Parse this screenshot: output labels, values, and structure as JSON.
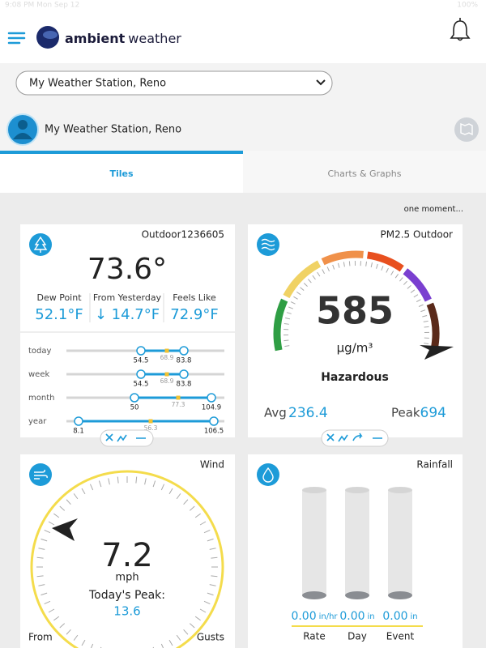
{
  "status_bar": {
    "time": "9:08 PM  Mon Sep 12",
    "battery": "100%"
  },
  "header": {
    "logo_bold": "ambient",
    "logo_light": "weather"
  },
  "station_select": "My Weather Station, Reno",
  "station_name": "My Weather Station, Reno",
  "tabs": [
    "Tiles",
    "Charts & Graphs"
  ],
  "status_message": "one moment...",
  "outdoor": {
    "title": "Outdoor1236605",
    "temperature": "73.6°",
    "stats": [
      {
        "label": "Dew Point",
        "value": "52.1°F"
      },
      {
        "label": "From Yesterday",
        "value": "↓ 14.7°F"
      },
      {
        "label": "Feels Like",
        "value": "72.9°F"
      }
    ],
    "ranges": [
      {
        "label": "today",
        "low": "54.5",
        "avg": "68.9",
        "high": "83.8"
      },
      {
        "label": "week",
        "low": "54.5",
        "avg": "68.9",
        "high": "83.8"
      },
      {
        "label": "month",
        "low": "50",
        "avg": "77.3",
        "high": "104.9"
      },
      {
        "label": "year",
        "low": "8.1",
        "avg": "56.3",
        "high": "106.5"
      }
    ]
  },
  "pm25": {
    "title": "PM2.5 Outdoor",
    "value": "585",
    "unit": "µg/m³",
    "level": "Hazardous",
    "avg_label": "Avg",
    "avg": "236.4",
    "peak_label": "Peak",
    "peak": "694"
  },
  "wind": {
    "title": "Wind",
    "speed": "7.2",
    "unit": "mph",
    "peak_label": "Today's Peak:",
    "peak": "13.6",
    "from_label": "From",
    "gusts_label": "Gusts"
  },
  "rainfall": {
    "title": "Rainfall",
    "gauges": [
      {
        "value": "0.00",
        "unit": "in/hr",
        "label": "Rate"
      },
      {
        "value": "0.00",
        "unit": "in",
        "label": "Day"
      },
      {
        "value": "0.00",
        "unit": "in",
        "label": "Event"
      }
    ]
  }
}
